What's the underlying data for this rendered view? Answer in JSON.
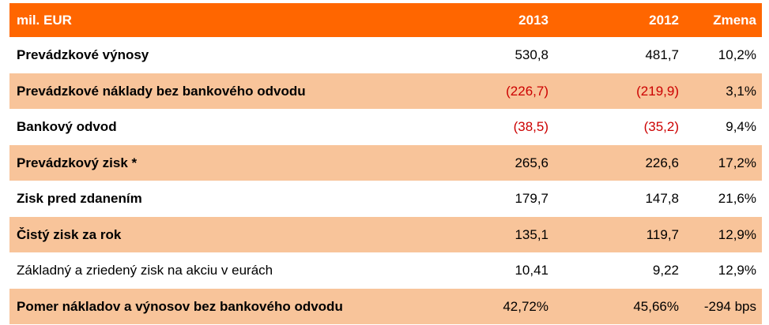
{
  "colors": {
    "header_bg": "#ff6600",
    "shaded_bg": "#f8c49a",
    "plain_bg": "#ffffff",
    "negative_text": "#cc0000"
  },
  "table": {
    "columns": [
      "mil. EUR",
      "2013",
      "2012",
      "Zmena"
    ],
    "rows": [
      {
        "label": "Prevádzkové výnosy",
        "v2013": "530,8",
        "v2012": "481,7",
        "change": "10,2%",
        "bold": true,
        "shaded": false,
        "negative": false
      },
      {
        "label": "Prevádzkové náklady bez bankového odvodu",
        "v2013": "(226,7)",
        "v2012": "(219,9)",
        "change": "3,1%",
        "bold": true,
        "shaded": true,
        "negative": true
      },
      {
        "label": "Bankový odvod",
        "v2013": "(38,5)",
        "v2012": "(35,2)",
        "change": "9,4%",
        "bold": true,
        "shaded": false,
        "negative": true
      },
      {
        "label": "Prevádzkový zisk *",
        "v2013": "265,6",
        "v2012": "226,6",
        "change": "17,2%",
        "bold": true,
        "shaded": true,
        "negative": false
      },
      {
        "label": "Zisk pred zdanením",
        "v2013": "179,7",
        "v2012": "147,8",
        "change": "21,6%",
        "bold": true,
        "shaded": false,
        "negative": false
      },
      {
        "label": "Čistý zisk za rok",
        "v2013": "135,1",
        "v2012": "119,7",
        "change": "12,9%",
        "bold": true,
        "shaded": true,
        "negative": false
      },
      {
        "label": "Základný a zriedený zisk na akciu v eurách",
        "v2013": "10,41",
        "v2012": "9,22",
        "change": "12,9%",
        "bold": false,
        "shaded": false,
        "negative": false
      },
      {
        "label": "Pomer nákladov a výnosov bez bankového odvodu",
        "v2013": "42,72%",
        "v2012": "45,66%",
        "change": "-294 bps",
        "bold": true,
        "shaded": true,
        "negative": false
      }
    ]
  }
}
